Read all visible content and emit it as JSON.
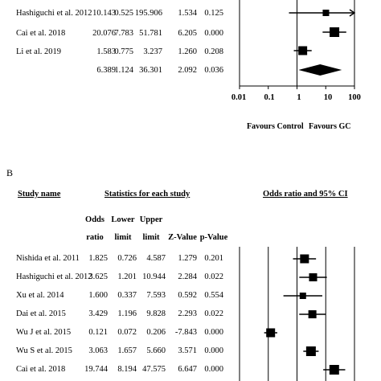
{
  "panel_a": {
    "rows": [
      {
        "study": "Hashiguchi et al. 2012",
        "or": "10.143",
        "lower": "0.525",
        "upper": "195.906",
        "z": "1.534",
        "p": "0.125"
      },
      {
        "study": "Cai et al. 2018",
        "or": "20.076",
        "lower": "7.783",
        "upper": "51.781",
        "z": "6.205",
        "p": "0.000"
      },
      {
        "study": "Li et al. 2019",
        "or": "1.583",
        "lower": "0.775",
        "upper": "3.237",
        "z": "1.260",
        "p": "0.208"
      },
      {
        "study": "",
        "or": "6.389",
        "lower": "1.124",
        "upper": "36.301",
        "z": "2.092",
        "p": "0.036"
      }
    ],
    "axis_ticks": [
      "0.01",
      "0.1",
      "1",
      "10",
      "100"
    ],
    "favours_left": "Favours Control",
    "favours_right": "Favours GC"
  },
  "panel_b": {
    "label": "B",
    "study_header": "Study name",
    "stats_header": "Statistics for each study",
    "plot_header": "Odds ratio and 95% CI",
    "col_or": [
      "Odds",
      "ratio"
    ],
    "col_lower": [
      "Lower",
      "limit"
    ],
    "col_upper": [
      "Upper",
      "limit"
    ],
    "col_z": "Z-Value",
    "col_p": "p-Value",
    "rows": [
      {
        "study": "Nishida et al. 2011",
        "or": "1.825",
        "lower": "0.726",
        "upper": "4.587",
        "z": "1.279",
        "p": "0.201"
      },
      {
        "study": "Hashiguchi et al. 2012",
        "or": "3.625",
        "lower": "1.201",
        "upper": "10.944",
        "z": "2.284",
        "p": "0.022"
      },
      {
        "study": "Xu et al. 2014",
        "or": "1.600",
        "lower": "0.337",
        "upper": "7.593",
        "z": "0.592",
        "p": "0.554"
      },
      {
        "study": "Dai et al. 2015",
        "or": "3.429",
        "lower": "1.196",
        "upper": "9.828",
        "z": "2.293",
        "p": "0.022"
      },
      {
        "study": "Wu J et al. 2015",
        "or": "0.121",
        "lower": "0.072",
        "upper": "0.206",
        "z": "-7.843",
        "p": "0.000"
      },
      {
        "study": "Wu S et al. 2015",
        "or": "3.063",
        "lower": "1.657",
        "upper": "5.660",
        "z": "3.571",
        "p": "0.000"
      },
      {
        "study": "Cai et al. 2018",
        "or": "19.744",
        "lower": "8.194",
        "upper": "47.575",
        "z": "6.647",
        "p": "0.000"
      }
    ]
  },
  "chart_data": [
    {
      "type": "scatter",
      "title": "",
      "xscale": "log",
      "xlim": [
        0.01,
        100
      ],
      "xticks": [
        0.01,
        0.1,
        1,
        10,
        100
      ],
      "xlabel_left": "Favours Control",
      "xlabel_right": "Favours GC",
      "points": [
        {
          "label": "Hashiguchi et al. 2012",
          "or": 10.143,
          "lower": 0.525,
          "upper": 195.906
        },
        {
          "label": "Cai et al. 2018",
          "or": 20.076,
          "lower": 7.783,
          "upper": 51.781
        },
        {
          "label": "Li et al. 2019",
          "or": 1.583,
          "lower": 0.775,
          "upper": 3.237
        }
      ],
      "summary": {
        "or": 6.389,
        "lower": 1.124,
        "upper": 36.301
      }
    },
    {
      "type": "scatter",
      "title": "Odds ratio and 95% CI",
      "xscale": "log",
      "xlim": [
        0.01,
        100
      ],
      "points": [
        {
          "label": "Nishida et al. 2011",
          "or": 1.825,
          "lower": 0.726,
          "upper": 4.587
        },
        {
          "label": "Hashiguchi et al. 2012",
          "or": 3.625,
          "lower": 1.201,
          "upper": 10.944
        },
        {
          "label": "Xu et al. 2014",
          "or": 1.6,
          "lower": 0.337,
          "upper": 7.593
        },
        {
          "label": "Dai et al. 2015",
          "or": 3.429,
          "lower": 1.196,
          "upper": 9.828
        },
        {
          "label": "Wu J et al. 2015",
          "or": 0.121,
          "lower": 0.072,
          "upper": 0.206
        },
        {
          "label": "Wu S et al. 2015",
          "or": 3.063,
          "lower": 1.657,
          "upper": 5.66
        },
        {
          "label": "Cai et al. 2018",
          "or": 19.744,
          "lower": 8.194,
          "upper": 47.575
        }
      ]
    }
  ]
}
